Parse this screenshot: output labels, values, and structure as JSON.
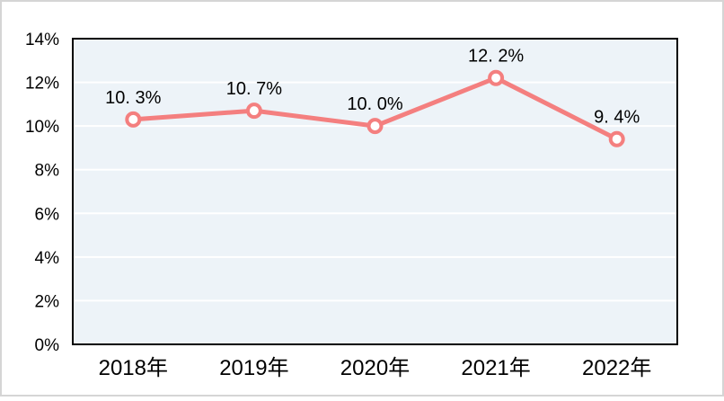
{
  "chart_data": {
    "type": "line",
    "title": "",
    "xlabel": "",
    "ylabel": "",
    "categories": [
      "2018年",
      "2019年",
      "2020年",
      "2021年",
      "2022年"
    ],
    "values": [
      10.3,
      10.7,
      10.0,
      12.2,
      9.4
    ],
    "point_labels": [
      "10. 3%",
      "10. 7%",
      "10. 0%",
      "12. 2%",
      "9. 4%"
    ],
    "ylim": [
      0,
      14
    ],
    "ytick_step": 2,
    "ytick_labels": [
      "0%",
      "2%",
      "4%",
      "6%",
      "8%",
      "10%",
      "12%",
      "14%"
    ],
    "grid": true,
    "legend": "none",
    "colors": {
      "line": "#F47F7F",
      "marker_fill": "#FFFFFF",
      "plot_background": "#EDF3F8",
      "gridline": "#FFFFFF",
      "plot_border": "#000000",
      "text": "#000000",
      "outer_border": "#D5D5D5",
      "canvas_background": "#FFFFFF"
    }
  }
}
